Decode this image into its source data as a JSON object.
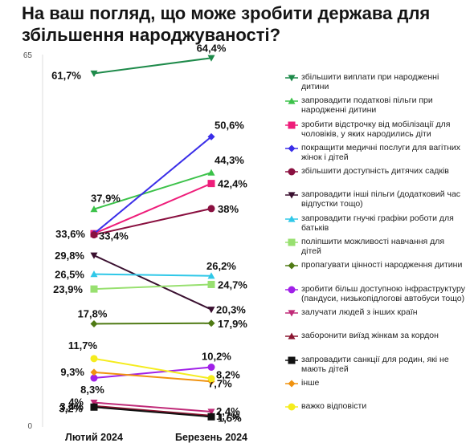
{
  "title": "На ваш погляд, що може зробити держава для збільшення народжуваності?",
  "chart_data": {
    "type": "line",
    "title": "На ваш погляд, що може зробити держава для збільшення народжуваності?",
    "categories": [
      "Лютий 2024",
      "Березень 2024"
    ],
    "ylim": [
      0,
      65
    ],
    "y_ticks": [
      "0",
      "65"
    ],
    "legend_position": "right",
    "grid": false,
    "series": [
      {
        "name": "збільшити виплати при народженні дитини",
        "values": [
          61.7,
          64.4
        ],
        "labels": [
          "61,7%",
          "64,4%"
        ],
        "color": "#1e8a4a",
        "marker": "triangle-down"
      },
      {
        "name": "запровадити податкові пільги при народженні дитини",
        "values": [
          37.9,
          44.3
        ],
        "labels": [
          "37,9%",
          "44,3%"
        ],
        "color": "#3cc24a",
        "marker": "triangle-up"
      },
      {
        "name": "зробити відстрочку від мобілізації для чоловіків, у яких народились діти",
        "values": [
          33.6,
          42.4
        ],
        "labels": [
          "33,6%",
          "42,4%"
        ],
        "color": "#ee1d7a",
        "marker": "square"
      },
      {
        "name": "покращити медичні послуги для вагітних жінок і дітей",
        "values": [
          33.6,
          50.6
        ],
        "labels": [
          "",
          "50,6%"
        ],
        "color": "#3a2ee8",
        "marker": "diamond"
      },
      {
        "name": "збільшити доступність дитячих садків",
        "values": [
          33.4,
          38
        ],
        "labels": [
          "33,4%",
          "38%"
        ],
        "color": "#8a1040",
        "marker": "circle"
      },
      {
        "name": "запровадити інші пільги (додатковий час відпустки тощо)",
        "values": [
          29.8,
          20.3
        ],
        "labels": [
          "29,8%",
          "20,3%"
        ],
        "color": "#3a1030",
        "marker": "triangle-down"
      },
      {
        "name": "запровадити гнучкі графіки роботи для батьків",
        "values": [
          26.5,
          26.2
        ],
        "labels": [
          "26,5%",
          "26,2%"
        ],
        "color": "#30c8e8",
        "marker": "triangle-up"
      },
      {
        "name": "поліпшити можливості навчання для дітей",
        "values": [
          23.9,
          24.7
        ],
        "labels": [
          "23,9%",
          "24,7%"
        ],
        "color": "#98e070",
        "marker": "square"
      },
      {
        "name": "пропагувати цінності народження дитини",
        "values": [
          17.8,
          17.9
        ],
        "labels": [
          "17,8%",
          "17,9%"
        ],
        "color": "#4f7a14",
        "marker": "diamond"
      },
      {
        "name": "зробити більш доступною інфраструктуру (пандуси, низькопідлогові автобуси тощо)",
        "values": [
          8.3,
          10.2
        ],
        "labels": [
          "8,3%",
          "10,2%"
        ],
        "color": "#a020e8",
        "marker": "circle"
      },
      {
        "name": "залучати людей з інших країн",
        "values": [
          4,
          2.4
        ],
        "labels": [
          "4%",
          "2,4%"
        ],
        "color": "#c02a78",
        "marker": "triangle-down"
      },
      {
        "name": "заборонити виїзд жінкам за кордон",
        "values": [
          3.4,
          1.7
        ],
        "labels": [
          "3,4%",
          "1,7%"
        ],
        "color": "#8a1530",
        "marker": "triangle-up"
      },
      {
        "name": "запровадити санкції для родин, які не мають дітей",
        "values": [
          3.2,
          1.5
        ],
        "labels": [
          "3,2%",
          "1,5%"
        ],
        "color": "#111111",
        "marker": "square"
      },
      {
        "name": "інше",
        "values": [
          9.3,
          7.7
        ],
        "labels": [
          "9,3%",
          "7,7%"
        ],
        "color": "#f0920f",
        "marker": "diamond"
      },
      {
        "name": "важко відповісти",
        "values": [
          11.7,
          8.2
        ],
        "labels": [
          "11,7%",
          "8,2%"
        ],
        "color": "#f5ec1e",
        "marker": "circle"
      }
    ]
  }
}
